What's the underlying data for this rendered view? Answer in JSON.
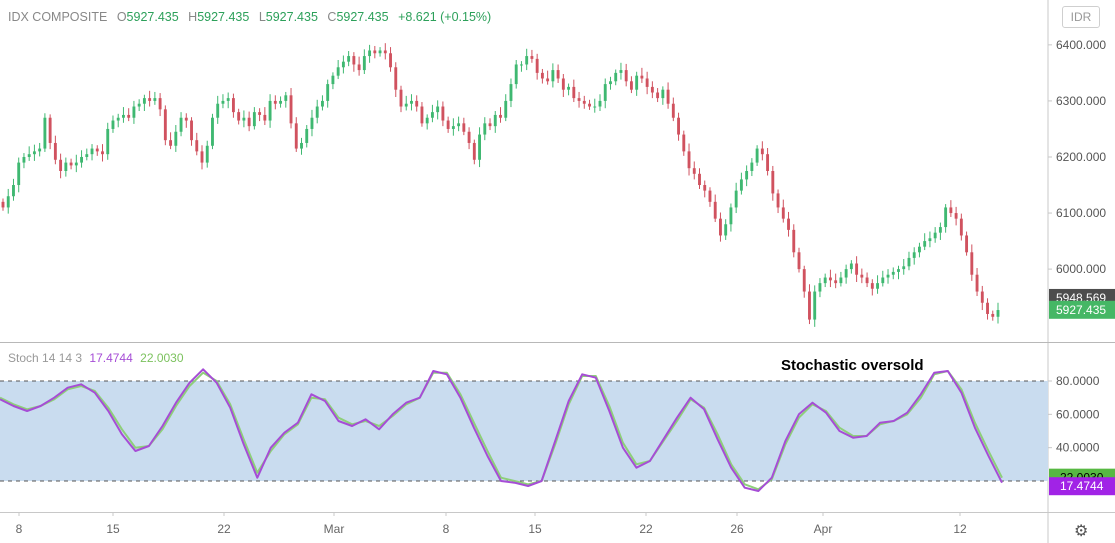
{
  "header": {
    "symbol": "IDX COMPOSITE",
    "open_label": "O",
    "open": "5927.435",
    "high_label": "H",
    "high": "5927.435",
    "low_label": "L",
    "low": "5927.435",
    "close_label": "C",
    "close": "5927.435",
    "change": "+8.621 (+0.15%)"
  },
  "currency_button": "IDR",
  "annotation": "Stochastic oversold",
  "indicator": {
    "name": "Stoch 14 14 3",
    "k_value": "17.4744",
    "d_value": "22.0030"
  },
  "colors": {
    "up": "#3fb871",
    "down": "#d0525f",
    "k_line": "#a64dd6",
    "d_line": "#8ecf7a",
    "band_fill": "#c9dcef",
    "price_badge": "#45b765",
    "prev_badge": "#4d4d4d",
    "d_badge": "#57b842",
    "k_badge": "#a123e6"
  },
  "chart_data": [
    {
      "type": "candlestick",
      "title": "IDX COMPOSITE",
      "ylim": [
        5870,
        6480
      ],
      "y_ticks": [
        "6400.000",
        "6300.000",
        "6200.000",
        "6100.000",
        "6000.000"
      ],
      "x_tick_labels": [
        "8",
        "15",
        "22",
        "Mar",
        "8",
        "15",
        "22",
        "26",
        "Apr",
        "12"
      ],
      "price_badges": [
        "5948.569",
        "5927.435"
      ],
      "close": [
        6110,
        6130,
        6150,
        6190,
        6200,
        6205,
        6210,
        6215,
        6270,
        6225,
        6195,
        6175,
        6190,
        6185,
        6190,
        6200,
        6205,
        6215,
        6210,
        6205,
        6250,
        6265,
        6270,
        6275,
        6270,
        6290,
        6295,
        6305,
        6300,
        6305,
        6285,
        6230,
        6220,
        6245,
        6270,
        6265,
        6230,
        6210,
        6190,
        6220,
        6270,
        6295,
        6300,
        6305,
        6280,
        6265,
        6270,
        6255,
        6280,
        6275,
        6265,
        6300,
        6295,
        6300,
        6310,
        6260,
        6215,
        6225,
        6250,
        6270,
        6290,
        6300,
        6330,
        6345,
        6360,
        6370,
        6380,
        6365,
        6355,
        6380,
        6390,
        6385,
        6390,
        6385,
        6360,
        6320,
        6290,
        6295,
        6300,
        6290,
        6260,
        6270,
        6280,
        6290,
        6265,
        6250,
        6255,
        6260,
        6245,
        6225,
        6195,
        6240,
        6260,
        6255,
        6275,
        6270,
        6300,
        6330,
        6365,
        6365,
        6380,
        6375,
        6350,
        6340,
        6335,
        6355,
        6340,
        6320,
        6325,
        6305,
        6300,
        6295,
        6290,
        6290,
        6300,
        6330,
        6335,
        6350,
        6355,
        6335,
        6320,
        6345,
        6340,
        6325,
        6315,
        6305,
        6320,
        6295,
        6270,
        6240,
        6210,
        6180,
        6170,
        6150,
        6140,
        6120,
        6090,
        6060,
        6080,
        6110,
        6140,
        6160,
        6175,
        6190,
        6215,
        6205,
        6175,
        6135,
        6110,
        6090,
        6070,
        6030,
        6000,
        5960,
        5910,
        5960,
        5975,
        5985,
        5980,
        5975,
        5985,
        6000,
        6010,
        5990,
        5985,
        5975,
        5965,
        5975,
        5985,
        5990,
        5995,
        6000,
        6005,
        6020,
        6030,
        6040,
        6050,
        6055,
        6065,
        6075,
        6110,
        6100,
        6090,
        6060,
        6030,
        5990,
        5960,
        5940,
        5920,
        5915,
        5927
      ]
    },
    {
      "type": "line",
      "title": "Stoch 14 14 3",
      "ylim": [
        0,
        100
      ],
      "y_ticks": [
        "80.0000",
        "60.0000",
        "40.0000"
      ],
      "bands": [
        80,
        20
      ],
      "value_badges": [
        "22.0030",
        "17.4744"
      ],
      "series": [
        {
          "values": [
            69,
            65,
            62,
            65,
            70,
            76,
            78,
            73,
            62,
            48,
            38,
            41,
            53,
            67,
            79,
            87,
            79,
            64,
            42,
            22,
            40,
            49,
            55,
            72,
            68,
            56,
            53,
            57,
            51,
            60,
            67,
            70,
            86,
            84,
            70,
            52,
            35,
            20,
            19,
            17,
            20,
            44,
            68,
            84,
            82,
            62,
            40,
            28,
            32,
            45,
            58,
            70,
            63,
            45,
            28,
            16,
            14,
            22,
            44,
            60,
            67,
            61,
            50,
            46,
            47,
            55,
            56,
            61,
            72,
            85,
            86,
            73,
            52,
            35,
            19
          ]
        },
        {
          "values": [
            70,
            66,
            63,
            65,
            69,
            75,
            77,
            74,
            64,
            51,
            40,
            41,
            51,
            65,
            77,
            85,
            80,
            66,
            45,
            25,
            38,
            48,
            54,
            70,
            69,
            58,
            54,
            56,
            53,
            59,
            66,
            70,
            85,
            85,
            72,
            55,
            38,
            22,
            20,
            18,
            20,
            42,
            66,
            83,
            83,
            65,
            43,
            30,
            32,
            44,
            56,
            69,
            64,
            48,
            30,
            18,
            15,
            21,
            42,
            58,
            66,
            62,
            52,
            47,
            47,
            54,
            56,
            60,
            70,
            84,
            86,
            75,
            55,
            38,
            22
          ]
        }
      ]
    }
  ]
}
